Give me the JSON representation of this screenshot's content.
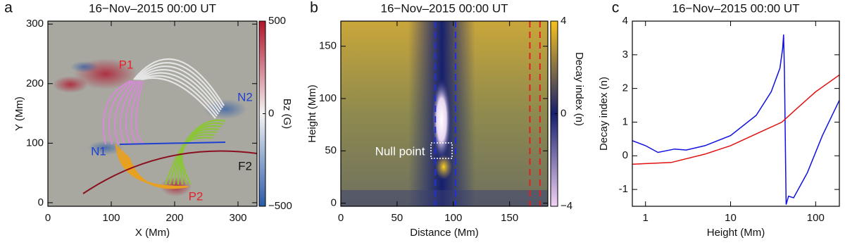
{
  "chart_data": [
    {
      "type": "image",
      "panel_label": "a",
      "title": "16−Nov–2015 00:00 UT",
      "xlabel": "X (Mm)",
      "ylabel": "Y (Mm)",
      "xlim": [
        0,
        330
      ],
      "xticks": [
        0,
        100,
        200,
        300
      ],
      "ylim": [
        -6,
        305
      ],
      "yticks": [
        0,
        100,
        200,
        300
      ],
      "colorbar": {
        "label": "Bz (G)",
        "lim": [
          -500,
          500
        ],
        "ticks": [
          {
            "value": -500,
            "label": "−500"
          },
          0,
          500
        ],
        "colors": [
          "#2a5aa8",
          "#f4f4f4",
          "#b0142c"
        ]
      },
      "annotations": [
        {
          "text": "P1",
          "color": "#e8202a"
        },
        {
          "text": "N2",
          "color": "#2040d0"
        },
        {
          "text": "N1",
          "color": "#2040d0"
        },
        {
          "text": "P2",
          "color": "#e8202a"
        },
        {
          "text": "F2",
          "color": "#111111"
        }
      ]
    },
    {
      "type": "heatmap",
      "panel_label": "b",
      "title": "16−Nov–2015 00:00 UT",
      "xlabel": "Distance (Mm)",
      "ylabel": "Height (Mm)",
      "xlim": [
        0,
        184
      ],
      "xticks": [
        0,
        50,
        100,
        150
      ],
      "ylim": [
        -3,
        174
      ],
      "yticks": [
        0,
        50,
        100,
        150
      ],
      "colorbar": {
        "label": "Decay index (n)",
        "lim": [
          -4,
          4
        ],
        "ticks": [
          {
            "value": -4,
            "label": "−4"
          },
          0,
          4
        ],
        "colors": [
          "#f3d2f5",
          "#16206e",
          "#f7c21c"
        ]
      },
      "vlines": [
        {
          "x": 84,
          "color": "#2030e0"
        },
        {
          "x": 102,
          "color": "#2030e0"
        },
        {
          "x": 168,
          "color": "#e02020"
        },
        {
          "x": 177,
          "color": "#e02020"
        }
      ],
      "annotations": [
        {
          "text": "Null point",
          "color": "#ffffff"
        }
      ]
    },
    {
      "type": "line",
      "panel_label": "c",
      "title": "16−Nov–2015 00:00 UT",
      "xlabel": "Height (Mm)",
      "ylabel": "Decay index (n)",
      "xlog": true,
      "xlim": [
        0.7,
        190
      ],
      "xticks": [
        1,
        10,
        100
      ],
      "ylim": [
        -1.5,
        4
      ],
      "yticks": [
        -1,
        0,
        1,
        2,
        3,
        4
      ],
      "series": [
        {
          "color": "#1010e0",
          "x": [
            0.7,
            1.0,
            1.4,
            2.2,
            3.0,
            5,
            10,
            20,
            30,
            38,
            41,
            42,
            43,
            45,
            48,
            55,
            80,
            120,
            190
          ],
          "values": [
            0.45,
            0.3,
            0.1,
            0.2,
            0.17,
            0.3,
            0.6,
            1.2,
            1.9,
            2.6,
            3.2,
            3.6,
            2.5,
            -1.45,
            -1.2,
            -1.25,
            -0.5,
            0.6,
            1.65
          ]
        },
        {
          "color": "#e01010",
          "x": [
            0.7,
            2,
            5,
            10,
            20,
            40,
            60,
            100,
            190
          ],
          "values": [
            -0.25,
            -0.2,
            0.05,
            0.3,
            0.65,
            1.0,
            1.4,
            1.9,
            2.4
          ]
        }
      ]
    }
  ]
}
